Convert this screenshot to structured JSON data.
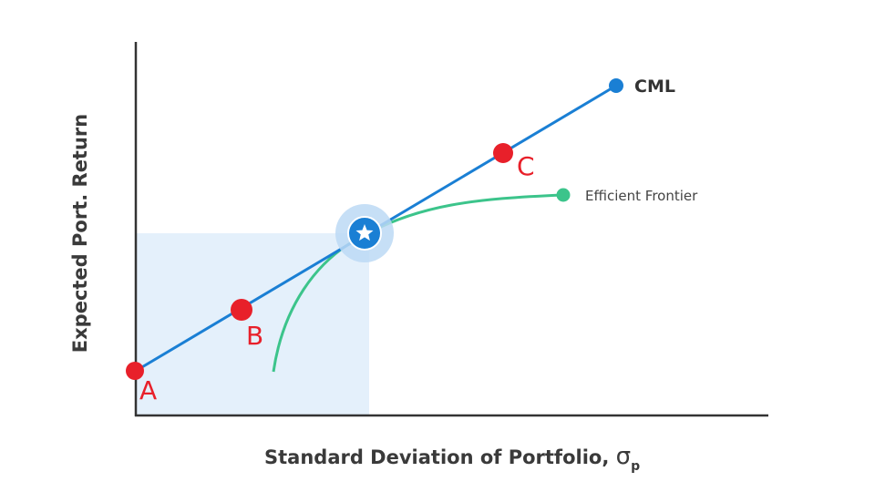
{
  "diagram": {
    "x_axis_title": "Standard Deviation of Portfolio, ",
    "x_axis_symbol": "σ",
    "x_axis_subscript": "p",
    "y_axis_title": "Expected Port. Return",
    "cml_label": "CML",
    "frontier_label": "Efficient Frontier",
    "points": [
      {
        "label": "A"
      },
      {
        "label": "B"
      },
      {
        "label": "C"
      }
    ],
    "tangency_marker": "star-icon"
  },
  "colors": {
    "cml": "#1a7fd4",
    "frontier": "#3cc48b",
    "point": "#e8202a",
    "shade": "#e4f0fb",
    "axis": "#333333",
    "halo": "#bcd9f5"
  }
}
